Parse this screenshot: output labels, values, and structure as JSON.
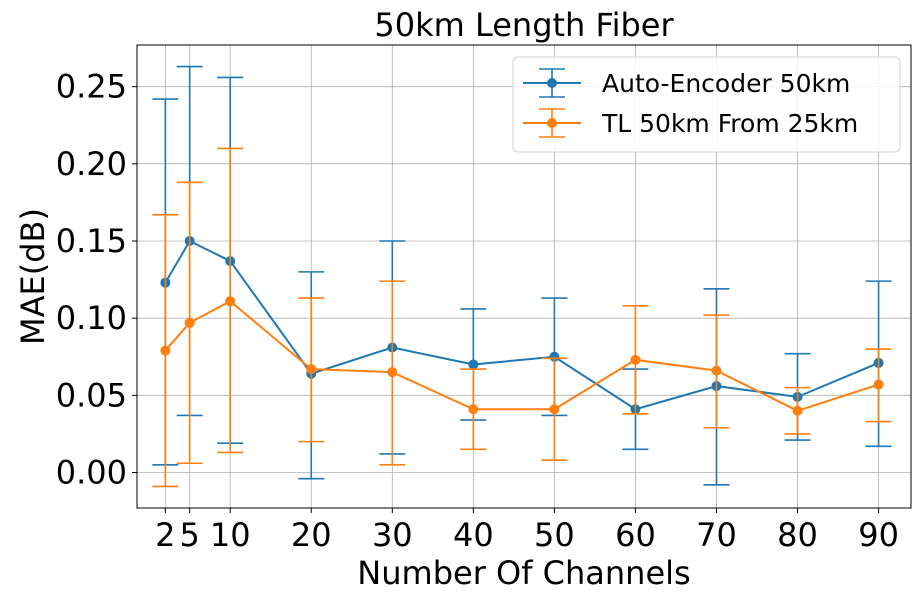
{
  "chart_data": {
    "type": "line",
    "title": "50km Length Fiber",
    "xlabel": "Number Of Channels",
    "ylabel": "MAE(dB)",
    "x": [
      2,
      5,
      10,
      20,
      30,
      40,
      50,
      60,
      70,
      80,
      90
    ],
    "x_ticks": [
      "2",
      "5",
      "10",
      "20",
      "30",
      "40",
      "50",
      "60",
      "70",
      "80",
      "90"
    ],
    "y_ticks": [
      "0.00",
      "0.05",
      "0.10",
      "0.15",
      "0.20",
      "0.25"
    ],
    "xlim": [
      -1.5,
      94
    ],
    "ylim": [
      -0.023,
      0.277
    ],
    "grid": true,
    "legend_position": "top-right",
    "error_bars": true,
    "series": [
      {
        "name": "Auto-Encoder 50km",
        "color": "#1f77b4",
        "values": [
          0.123,
          0.15,
          0.137,
          0.064,
          0.081,
          0.07,
          0.075,
          0.041,
          0.056,
          0.049,
          0.071
        ],
        "err_low": [
          0.005,
          0.037,
          0.019,
          -0.004,
          0.012,
          0.034,
          0.037,
          0.015,
          -0.008,
          0.021,
          0.017
        ],
        "err_high": [
          0.242,
          0.263,
          0.256,
          0.13,
          0.15,
          0.106,
          0.113,
          0.067,
          0.119,
          0.077,
          0.124
        ]
      },
      {
        "name": "TL 50km From 25km",
        "color": "#ff7f0e",
        "values": [
          0.079,
          0.097,
          0.111,
          0.067,
          0.065,
          0.041,
          0.041,
          0.073,
          0.066,
          0.04,
          0.057
        ],
        "err_low": [
          -0.009,
          0.006,
          0.013,
          0.02,
          0.005,
          0.015,
          0.008,
          0.038,
          0.029,
          0.025,
          0.033
        ],
        "err_high": [
          0.167,
          0.188,
          0.21,
          0.113,
          0.124,
          0.067,
          0.074,
          0.108,
          0.102,
          0.055,
          0.08
        ]
      }
    ]
  }
}
